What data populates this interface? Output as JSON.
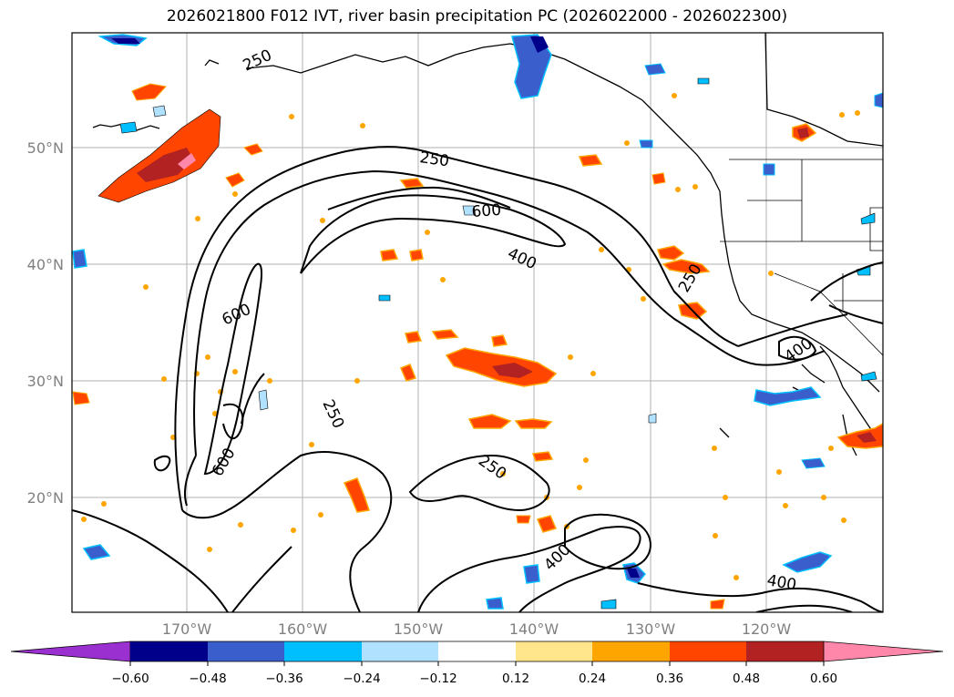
{
  "title": "2026021800 F012 IVT, river basin precipitation PC (2026022000 - 2026022300)",
  "map": {
    "lat_labels": [
      "50°N",
      "40°N",
      "30°N",
      "20°N"
    ],
    "lon_labels": [
      "170°W",
      "160°W",
      "150°W",
      "140°W",
      "130°W",
      "120°W"
    ],
    "contour_labels": [
      "250",
      "600",
      "400",
      "250",
      "600",
      "250",
      "600",
      "250",
      "400",
      "400",
      "250"
    ]
  },
  "colorbar": {
    "ticks": [
      "−0.60",
      "−0.48",
      "−0.36",
      "−0.24",
      "−0.12",
      "0.12",
      "0.24",
      "0.36",
      "0.48",
      "0.60"
    ],
    "colors": [
      "#9b30d0",
      "#00008b",
      "#3a5fcd",
      "#00bfff",
      "#b0e2ff",
      "#ffffff",
      "#ffe68c",
      "#ffa500",
      "#ff4500",
      "#b22222",
      "#ff88aa"
    ]
  }
}
